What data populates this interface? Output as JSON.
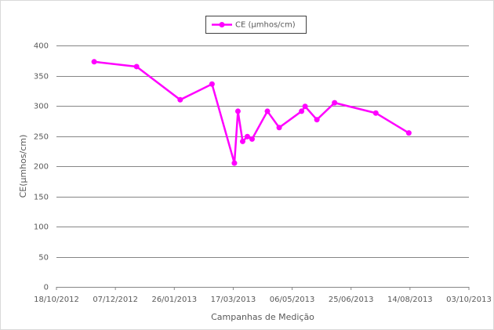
{
  "chart_data": {
    "type": "line",
    "title_legend_position": "top",
    "x_label": "Campanhas de Medição",
    "y_label": "CE(µmhos/cm)",
    "x": [
      "19/11/2012",
      "25/12/2012",
      "31/01/2013",
      "27/02/2013",
      "18/03/2013",
      "21/03/2013",
      "25/03/2013",
      "29/03/2013",
      "02/04/2013",
      "15/04/2013",
      "25/04/2013",
      "14/05/2013",
      "17/05/2013",
      "27/05/2013",
      "11/06/2013",
      "16/07/2013",
      "13/08/2013"
    ],
    "series": [
      {
        "name": "CE   (µmhos/cm)",
        "color": "#ff00ff",
        "values": [
          373,
          365,
          310,
          336,
          205,
          291,
          241,
          249,
          245,
          291,
          264,
          291,
          299,
          277,
          305,
          288,
          255
        ]
      }
    ],
    "xlim": [
      "18/10/2012",
      "03/10/2013"
    ],
    "xticks": [
      "18/10/2012",
      "07/12/2012",
      "26/01/2013",
      "17/03/2013",
      "06/05/2013",
      "25/06/2013",
      "14/08/2013",
      "03/10/2013"
    ],
    "ylim": [
      0,
      400
    ],
    "yticks": [
      0,
      50,
      100,
      150,
      200,
      250,
      300,
      350,
      400
    ],
    "grid": true
  }
}
